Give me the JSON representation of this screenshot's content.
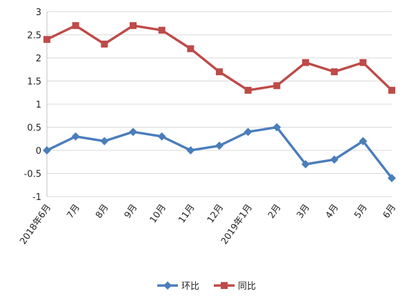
{
  "chart_data": {
    "type": "line",
    "categories": [
      "2018年6月",
      "7月",
      "8月",
      "9月",
      "10月",
      "11月",
      "12月",
      "2019年1月",
      "2月",
      "3月",
      "4月",
      "5月",
      "6月"
    ],
    "series": [
      {
        "name": "环比",
        "color": "#4A7EBB",
        "marker": "diamond",
        "values": [
          0.0,
          0.3,
          0.2,
          0.4,
          0.3,
          0.0,
          0.1,
          0.4,
          0.5,
          -0.3,
          -0.2,
          0.2,
          -0.6
        ]
      },
      {
        "name": "同比",
        "color": "#BE4B48",
        "marker": "square",
        "values": [
          2.4,
          2.7,
          2.3,
          2.7,
          2.6,
          2.2,
          1.7,
          1.3,
          1.4,
          1.9,
          1.7,
          1.9,
          1.3
        ]
      }
    ],
    "yticks": [
      "-1",
      "-0.5",
      "0",
      "0.5",
      "1",
      "1.5",
      "2",
      "2.5",
      "3"
    ],
    "ylim": [
      -1,
      3
    ],
    "grid": "horizontal",
    "legend_position": "bottom-center"
  }
}
